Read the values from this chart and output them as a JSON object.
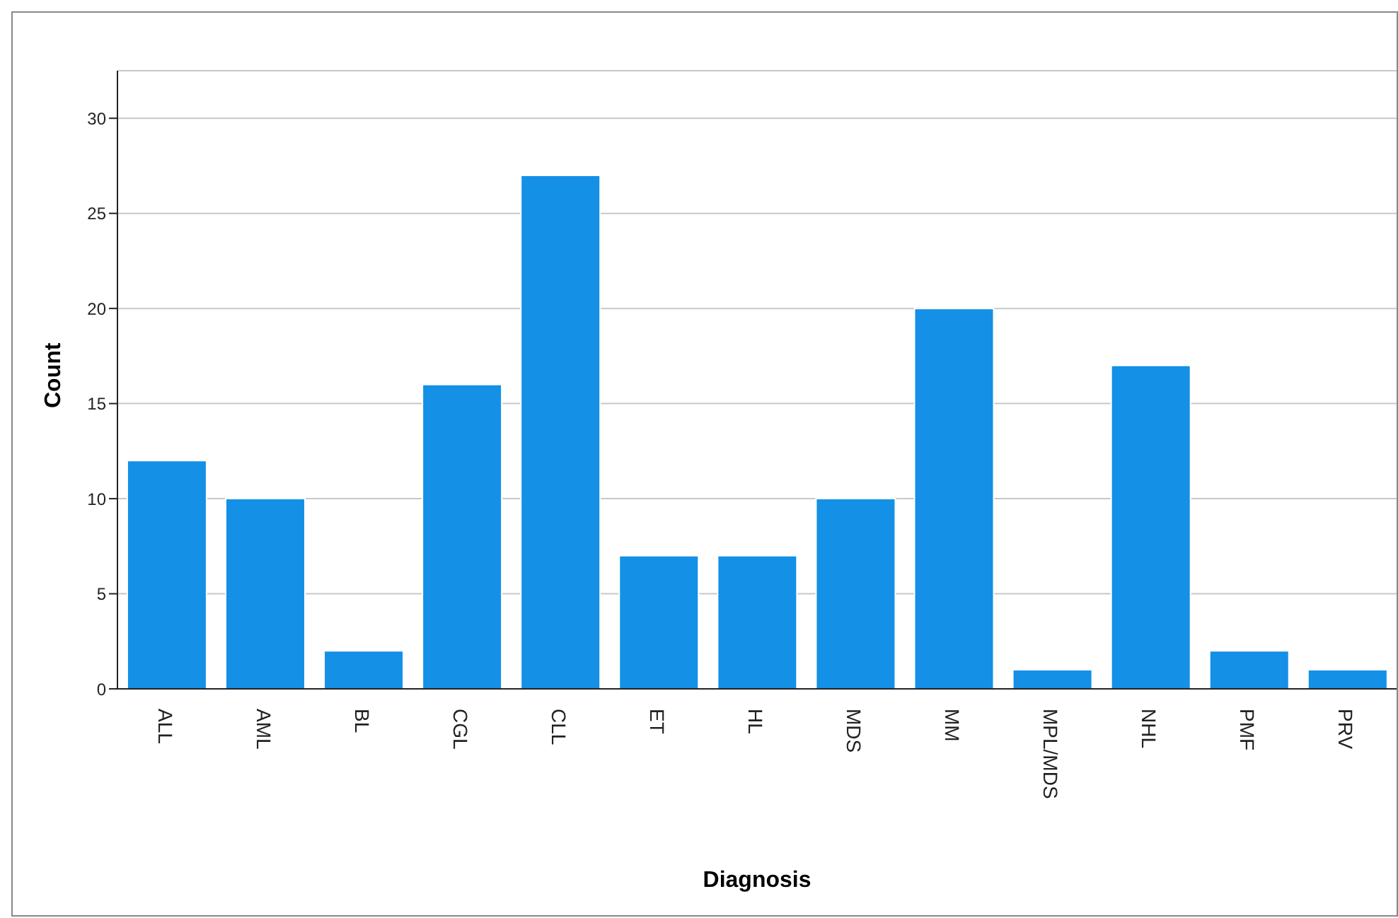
{
  "chart_data": {
    "type": "bar",
    "xlabel": "Diagnosis",
    "ylabel": "Count",
    "categories": [
      "ALL",
      "AML",
      "BL",
      "CGL",
      "CLL",
      "ET",
      "HL",
      "MDS",
      "MM",
      "MPL/MDS",
      "NHL",
      "PMF",
      "PRV"
    ],
    "values": [
      12,
      10,
      2,
      16,
      27,
      7,
      7,
      10,
      20,
      1,
      17,
      2,
      1
    ],
    "color": "#1490e6",
    "ylim": [
      0,
      32.5
    ],
    "yticks": [
      0,
      5,
      10,
      15,
      20,
      25,
      30
    ],
    "grid": "y"
  }
}
